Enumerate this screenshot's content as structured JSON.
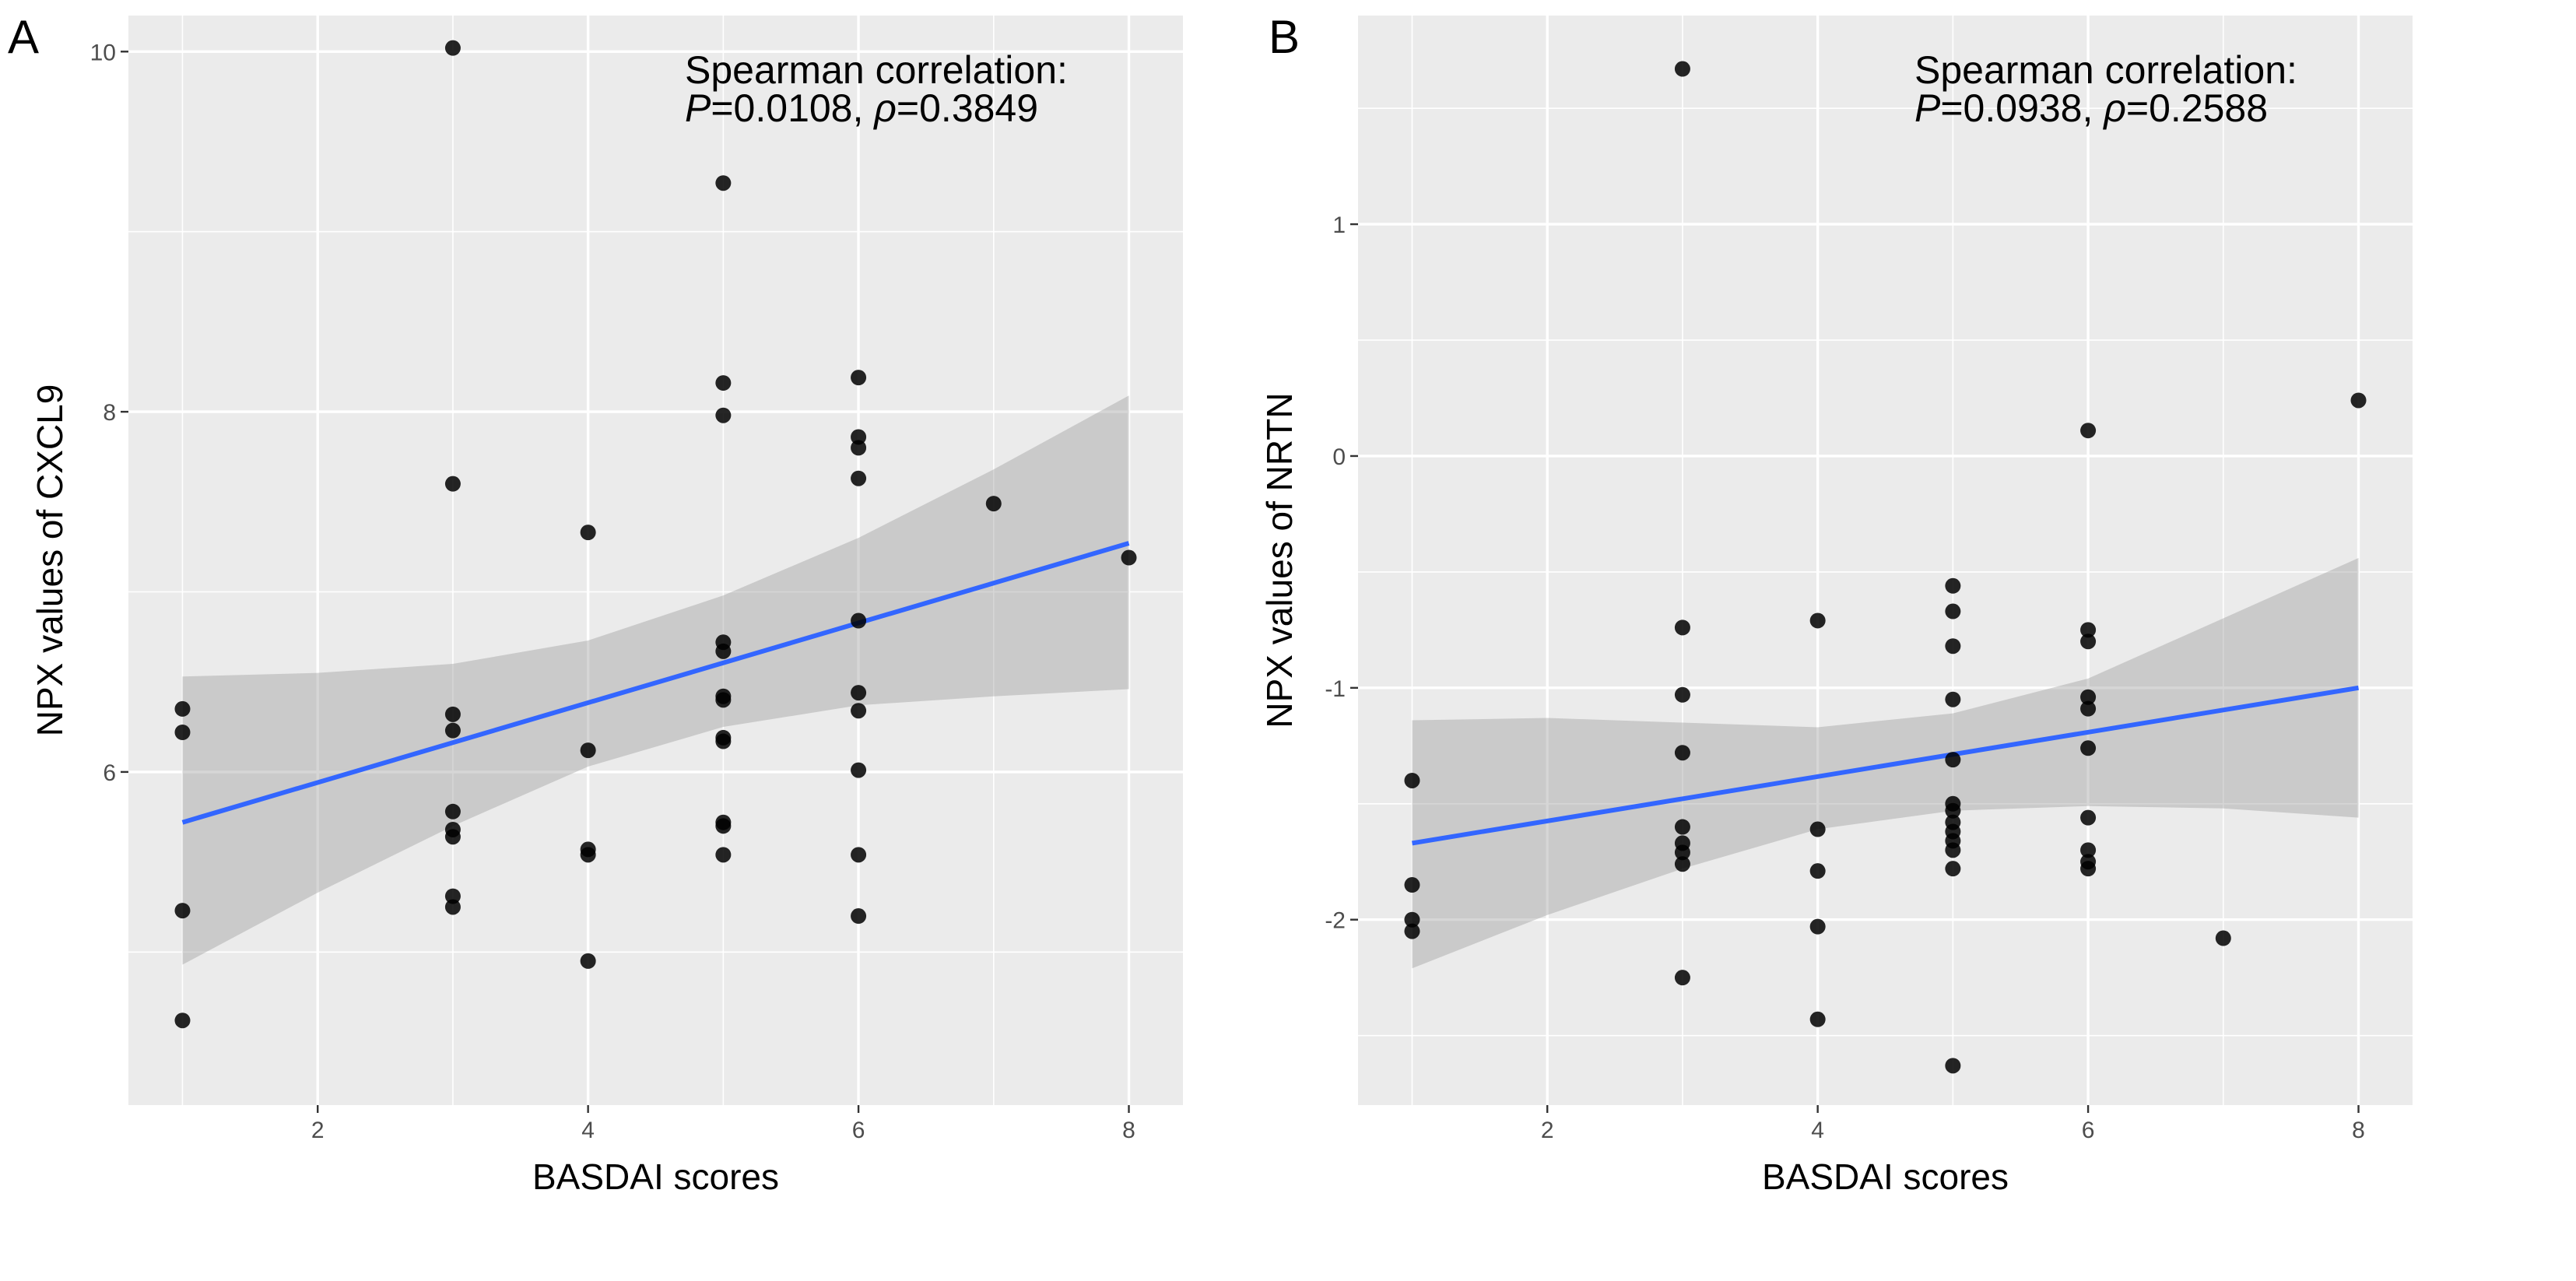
{
  "chart_data": [
    {
      "type": "scatter",
      "panel_label": "A",
      "xlabel": "BASDAI  scores",
      "ylabel": "NPX  values  of  CXCL9",
      "xlim": [
        0.6,
        8.4
      ],
      "ylim": [
        4.15,
        10.2
      ],
      "x_ticks": [
        2,
        4,
        6,
        8
      ],
      "y_ticks": [
        6,
        8,
        10
      ],
      "grid": true,
      "annotation": {
        "line1": "Spearman correlation:",
        "p_symbol": "P",
        "p_value": "=0.0108, ",
        "rho_symbol": "ρ",
        "rho_value": "=0.3849"
      },
      "points": [
        {
          "x": 1,
          "y": 6.35
        },
        {
          "x": 1,
          "y": 6.22
        },
        {
          "x": 1,
          "y": 5.23
        },
        {
          "x": 1,
          "y": 4.62
        },
        {
          "x": 3,
          "y": 10.02
        },
        {
          "x": 3,
          "y": 7.6
        },
        {
          "x": 3,
          "y": 6.32
        },
        {
          "x": 3,
          "y": 6.23
        },
        {
          "x": 3,
          "y": 5.78
        },
        {
          "x": 3,
          "y": 5.68
        },
        {
          "x": 3,
          "y": 5.64
        },
        {
          "x": 3,
          "y": 5.31
        },
        {
          "x": 3,
          "y": 5.25
        },
        {
          "x": 4,
          "y": 7.33
        },
        {
          "x": 4,
          "y": 6.12
        },
        {
          "x": 4,
          "y": 5.57
        },
        {
          "x": 4,
          "y": 5.54
        },
        {
          "x": 4,
          "y": 4.95
        },
        {
          "x": 5,
          "y": 9.27
        },
        {
          "x": 5,
          "y": 8.16
        },
        {
          "x": 5,
          "y": 7.98
        },
        {
          "x": 5,
          "y": 6.72
        },
        {
          "x": 5,
          "y": 6.67
        },
        {
          "x": 5,
          "y": 6.42
        },
        {
          "x": 5,
          "y": 6.4
        },
        {
          "x": 5,
          "y": 6.19
        },
        {
          "x": 5,
          "y": 6.17
        },
        {
          "x": 5,
          "y": 5.72
        },
        {
          "x": 5,
          "y": 5.7
        },
        {
          "x": 5,
          "y": 5.54
        },
        {
          "x": 6,
          "y": 8.19
        },
        {
          "x": 6,
          "y": 7.86
        },
        {
          "x": 6,
          "y": 7.8
        },
        {
          "x": 6,
          "y": 7.63
        },
        {
          "x": 6,
          "y": 6.84
        },
        {
          "x": 6,
          "y": 6.44
        },
        {
          "x": 6,
          "y": 6.34
        },
        {
          "x": 6,
          "y": 6.01
        },
        {
          "x": 6,
          "y": 5.54
        },
        {
          "x": 6,
          "y": 5.2
        },
        {
          "x": 7,
          "y": 7.49
        },
        {
          "x": 8,
          "y": 7.19
        }
      ],
      "fit_line": {
        "x": [
          1,
          8
        ],
        "y": [
          5.72,
          7.27
        ],
        "color": "#3366ff"
      },
      "ci_band": {
        "x": [
          1,
          2,
          3,
          4,
          5,
          6,
          7,
          8
        ],
        "lower": [
          4.93,
          5.33,
          5.7,
          6.03,
          6.25,
          6.37,
          6.42,
          6.46
        ],
        "upper": [
          6.53,
          6.55,
          6.6,
          6.73,
          6.98,
          7.3,
          7.68,
          8.09
        ]
      }
    },
    {
      "type": "scatter",
      "panel_label": "B",
      "xlabel": "BASDAI  scores",
      "ylabel": "NPX  values  of  NRTN",
      "xlim": [
        0.6,
        8.4
      ],
      "ylim": [
        -2.8,
        1.9
      ],
      "x_ticks": [
        2,
        4,
        6,
        8
      ],
      "y_ticks": [
        -2,
        -1,
        0,
        1
      ],
      "grid": true,
      "annotation": {
        "line1": "Spearman correlation:",
        "p_symbol": "P",
        "p_value": "=0.0938, ",
        "rho_symbol": "ρ",
        "rho_value": "=0.2588"
      },
      "points": [
        {
          "x": 1,
          "y": -1.4
        },
        {
          "x": 1,
          "y": -1.85
        },
        {
          "x": 1,
          "y": -2.0
        },
        {
          "x": 1,
          "y": -2.05
        },
        {
          "x": 3,
          "y": 1.67
        },
        {
          "x": 3,
          "y": -0.74
        },
        {
          "x": 3,
          "y": -1.03
        },
        {
          "x": 3,
          "y": -1.28
        },
        {
          "x": 3,
          "y": -1.6
        },
        {
          "x": 3,
          "y": -1.67
        },
        {
          "x": 3,
          "y": -1.71
        },
        {
          "x": 3,
          "y": -1.76
        },
        {
          "x": 3,
          "y": -2.25
        },
        {
          "x": 4,
          "y": -0.71
        },
        {
          "x": 4,
          "y": -1.61
        },
        {
          "x": 4,
          "y": -1.79
        },
        {
          "x": 4,
          "y": -2.03
        },
        {
          "x": 4,
          "y": -2.43
        },
        {
          "x": 5,
          "y": -0.56
        },
        {
          "x": 5,
          "y": -0.67
        },
        {
          "x": 5,
          "y": -0.82
        },
        {
          "x": 5,
          "y": -1.05
        },
        {
          "x": 5,
          "y": -1.31
        },
        {
          "x": 5,
          "y": -1.5
        },
        {
          "x": 5,
          "y": -1.53
        },
        {
          "x": 5,
          "y": -1.58
        },
        {
          "x": 5,
          "y": -1.62
        },
        {
          "x": 5,
          "y": -1.66
        },
        {
          "x": 5,
          "y": -1.7
        },
        {
          "x": 5,
          "y": -1.78
        },
        {
          "x": 5,
          "y": -2.63
        },
        {
          "x": 6,
          "y": 0.11
        },
        {
          "x": 6,
          "y": -0.75
        },
        {
          "x": 6,
          "y": -0.8
        },
        {
          "x": 6,
          "y": -1.04
        },
        {
          "x": 6,
          "y": -1.09
        },
        {
          "x": 6,
          "y": -1.26
        },
        {
          "x": 6,
          "y": -1.56
        },
        {
          "x": 6,
          "y": -1.7
        },
        {
          "x": 6,
          "y": -1.75
        },
        {
          "x": 6,
          "y": -1.78
        },
        {
          "x": 7,
          "y": -2.08
        },
        {
          "x": 8,
          "y": 0.24
        }
      ],
      "fit_line": {
        "x": [
          1,
          8
        ],
        "y": [
          -1.67,
          -1.0
        ],
        "color": "#3366ff"
      },
      "ci_band": {
        "x": [
          1,
          2,
          3,
          4,
          5,
          6,
          7,
          8
        ],
        "lower": [
          -2.21,
          -1.98,
          -1.78,
          -1.61,
          -1.53,
          -1.51,
          -1.52,
          -1.56
        ],
        "upper": [
          -1.14,
          -1.13,
          -1.15,
          -1.17,
          -1.11,
          -0.96,
          -0.7,
          -0.44
        ]
      }
    }
  ]
}
